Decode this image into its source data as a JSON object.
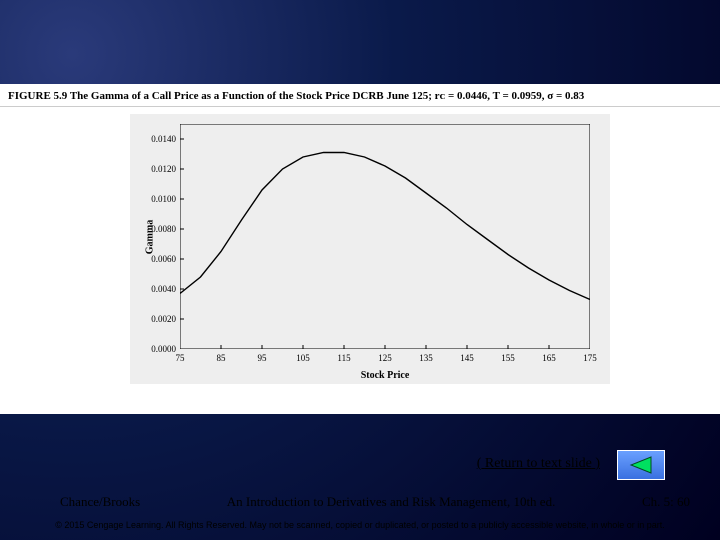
{
  "figure": {
    "caption_label": "FIGURE 5.9",
    "caption_text": "The Gamma of a Call Price as a Function of the Stock Price DCRB June 125; rᴄ = 0.0446, T = 0.0959, σ = 0.83",
    "chart": {
      "type": "line",
      "background_color": "#eeeeee",
      "panel_background": "#ffffff",
      "line_color": "#000000",
      "line_width": 1.4,
      "xlabel": "Stock Price",
      "ylabel": "Gamma",
      "label_fontsize": 10,
      "tick_fontsize": 9,
      "xlim": [
        75,
        175
      ],
      "ylim": [
        0,
        0.015
      ],
      "xticks": [
        75,
        85,
        95,
        105,
        115,
        125,
        135,
        145,
        155,
        165,
        175
      ],
      "yticks": [
        0.0,
        0.002,
        0.004,
        0.006,
        0.008,
        0.01,
        0.012,
        0.014
      ],
      "ytick_labels": [
        "0.0000",
        "0.0020",
        "0.0040",
        "0.0060",
        "0.0080",
        "0.0100",
        "0.0120",
        "0.0140"
      ],
      "series": {
        "x": [
          75,
          80,
          85,
          90,
          95,
          100,
          105,
          110,
          115,
          120,
          125,
          130,
          135,
          140,
          145,
          150,
          155,
          160,
          165,
          170,
          175
        ],
        "y": [
          0.0037,
          0.0048,
          0.0065,
          0.0086,
          0.0106,
          0.012,
          0.0128,
          0.0131,
          0.0131,
          0.0128,
          0.0122,
          0.0114,
          0.0104,
          0.0094,
          0.0083,
          0.0073,
          0.0063,
          0.0054,
          0.0046,
          0.0039,
          0.0033
        ]
      }
    }
  },
  "nav": {
    "return_link": "Return to text slide",
    "back_icon_color": "#00e060",
    "back_icon_stroke": "#004a20"
  },
  "footer": {
    "authors": "Chance/Brooks",
    "title": "An Introduction to Derivatives and Risk Management, 10th ed.",
    "chapter": "Ch. 5: 60",
    "copyright": "© 2015 Cengage Learning. All Rights Reserved. May not be scanned, copied or duplicated, or posted to a publicly accessible website, in whole or in part."
  }
}
